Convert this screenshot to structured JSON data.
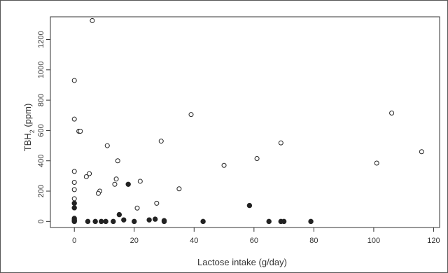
{
  "chart_data": {
    "type": "scatter",
    "xlabel": "Lactose intake (g/day)",
    "ylabel_main": "TBH",
    "ylabel_sub": "2",
    "ylabel_unit": " (ppm)",
    "xlim": [
      -8,
      122
    ],
    "ylim": [
      -40,
      1350
    ],
    "xticks": [
      0,
      20,
      40,
      60,
      80,
      100,
      120
    ],
    "yticks": [
      0,
      200,
      400,
      600,
      800,
      1000,
      1200
    ],
    "grid": false,
    "series": [
      {
        "marker": "open-circle",
        "color": "#222222",
        "points": [
          [
            6,
            1325
          ],
          [
            0,
            930
          ],
          [
            0,
            675
          ],
          [
            1.5,
            595
          ],
          [
            2,
            595
          ],
          [
            0,
            330
          ],
          [
            5,
            315
          ],
          [
            4,
            295
          ],
          [
            0,
            258
          ],
          [
            0,
            210
          ],
          [
            0,
            150
          ],
          [
            11,
            500
          ],
          [
            14.5,
            400
          ],
          [
            14,
            280
          ],
          [
            13.5,
            245
          ],
          [
            8.5,
            200
          ],
          [
            8,
            185
          ],
          [
            22,
            265
          ],
          [
            21,
            88
          ],
          [
            27.5,
            120
          ],
          [
            29,
            530
          ],
          [
            35,
            215
          ],
          [
            39,
            705
          ],
          [
            50,
            370
          ],
          [
            61,
            415
          ],
          [
            69,
            518
          ],
          [
            101,
            385
          ],
          [
            106,
            715
          ],
          [
            116,
            460
          ]
        ]
      },
      {
        "marker": "filled-circle",
        "color": "#222222",
        "points": [
          [
            0,
            120
          ],
          [
            0,
            90
          ],
          [
            0,
            20
          ],
          [
            0,
            10
          ],
          [
            0,
            0
          ],
          [
            0,
            5
          ],
          [
            4.5,
            0
          ],
          [
            7,
            0
          ],
          [
            9,
            0
          ],
          [
            10.5,
            0
          ],
          [
            13,
            0
          ],
          [
            15,
            45
          ],
          [
            16.5,
            10
          ],
          [
            18,
            245
          ],
          [
            20,
            0
          ],
          [
            25,
            10
          ],
          [
            27,
            15
          ],
          [
            30,
            5
          ],
          [
            30,
            0
          ],
          [
            43,
            0
          ],
          [
            58.5,
            105
          ],
          [
            65,
            0
          ],
          [
            69,
            0
          ],
          [
            70,
            0
          ],
          [
            79,
            0
          ]
        ]
      }
    ]
  }
}
